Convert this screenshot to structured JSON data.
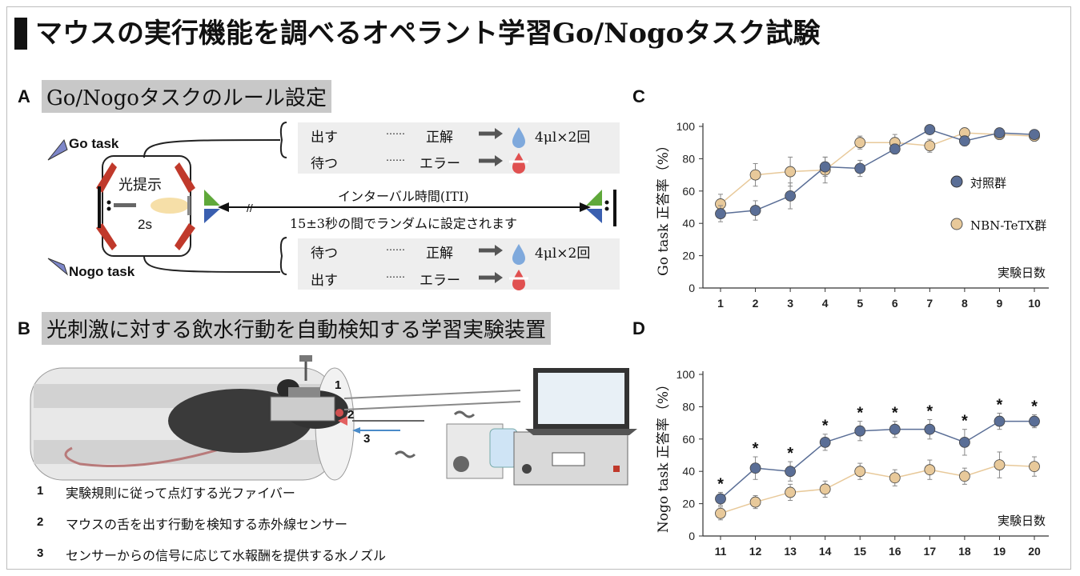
{
  "title": "マウスの実行機能を調べるオペラント学習Go/Nogoタスク試験",
  "panelA": {
    "letter": "A",
    "heading": "Go/Nogoタスクのルール設定",
    "go_label": "Go task",
    "nogo_label": "Nogo task",
    "light_label": "光提示",
    "duration": "2s",
    "iti_label": "インターバル時間(ITI)",
    "iti_desc": "15±3秒の間でランダムに設定されます",
    "go_rules": [
      {
        "action": "出す",
        "dots": "……",
        "result": "正解",
        "reward": "4μl×2回"
      },
      {
        "action": "待つ",
        "dots": "……",
        "result": "エラー",
        "reward": ""
      }
    ],
    "nogo_rules": [
      {
        "action": "待つ",
        "dots": "……",
        "result": "正解",
        "reward": "4μl×2回"
      },
      {
        "action": "出す",
        "dots": "……",
        "result": "エラー",
        "reward": ""
      }
    ]
  },
  "panelB": {
    "letter": "B",
    "heading": "光刺激に対する飲水行動を自動検知する学習実験装置",
    "markers": [
      "1",
      "2",
      "3"
    ],
    "items": [
      {
        "num": "1",
        "text": "実験規則に従って点灯する光ファイバー"
      },
      {
        "num": "2",
        "text": "マウスの舌を出す行動を検知する赤外線センサー"
      },
      {
        "num": "3",
        "text": "センサーからの信号に応じて水報酬を提供する水ノズル"
      }
    ]
  },
  "panelC": {
    "letter": "C",
    "legend": [
      {
        "label": "対照群",
        "color": "#5a6e96"
      },
      {
        "label": "NBN-TeTX群",
        "color": "#e8c99a"
      }
    ]
  },
  "panelD": {
    "letter": "D"
  },
  "chart_data": [
    {
      "type": "line",
      "title": "",
      "ylabel": "Go task 正答率（%）",
      "xlabel": "実験日数",
      "x": [
        "1",
        "2",
        "3",
        "4",
        "5",
        "6",
        "7",
        "8",
        "9",
        "10"
      ],
      "ylim": [
        0,
        100
      ],
      "yticks": [
        0,
        20,
        40,
        60,
        80,
        100
      ],
      "series": [
        {
          "name": "対照群",
          "color": "#5a6e96",
          "values": [
            46,
            48,
            57,
            75,
            74,
            86,
            98,
            91,
            96,
            95
          ],
          "errors": [
            5,
            6,
            8,
            6,
            5,
            3,
            2,
            3,
            2,
            2
          ]
        },
        {
          "name": "NBN-TeTX群",
          "color": "#e8c99a",
          "values": [
            52,
            70,
            72,
            73,
            90,
            90,
            88,
            96,
            95,
            94
          ],
          "errors": [
            6,
            7,
            9,
            8,
            4,
            5,
            4,
            3,
            3,
            3
          ]
        }
      ],
      "markers": []
    },
    {
      "type": "line",
      "title": "",
      "ylabel": "Nogo task 正答率（%）",
      "xlabel": "実験日数",
      "x": [
        "11",
        "12",
        "13",
        "14",
        "15",
        "16",
        "17",
        "18",
        "19",
        "20"
      ],
      "ylim": [
        0,
        100
      ],
      "yticks": [
        0,
        20,
        40,
        60,
        80,
        100
      ],
      "series": [
        {
          "name": "対照群",
          "color": "#5a6e96",
          "values": [
            23,
            42,
            40,
            58,
            65,
            66,
            66,
            58,
            71,
            71
          ],
          "errors": [
            4,
            7,
            6,
            5,
            6,
            5,
            6,
            8,
            5,
            4
          ]
        },
        {
          "name": "NBN-TeTX群",
          "color": "#e8c99a",
          "values": [
            14,
            21,
            27,
            29,
            40,
            36,
            41,
            37,
            44,
            43
          ],
          "errors": [
            4,
            4,
            5,
            5,
            5,
            5,
            6,
            5,
            8,
            6
          ]
        }
      ],
      "markers": [
        "*",
        "*",
        "*",
        "*",
        "*",
        "*",
        "*",
        "*",
        "*",
        "*"
      ]
    }
  ]
}
